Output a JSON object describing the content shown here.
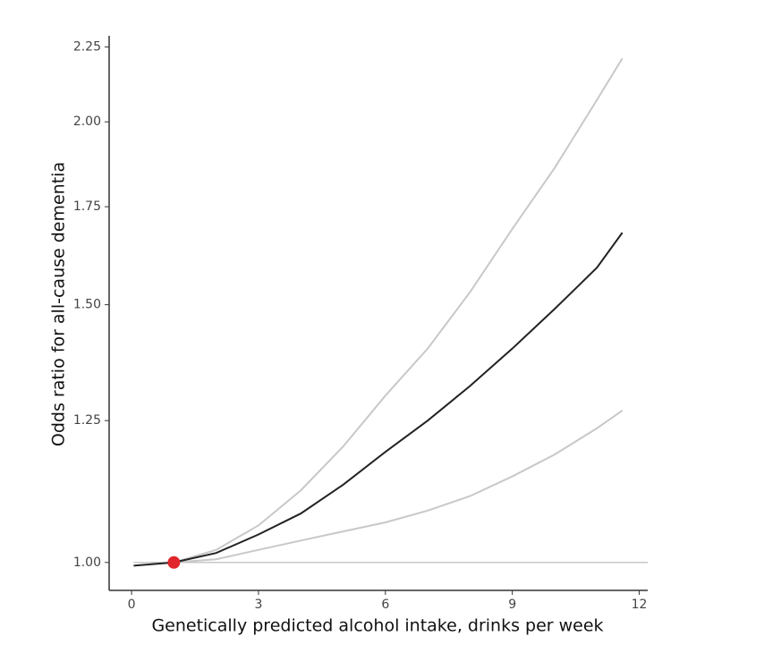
{
  "chart_data": {
    "type": "line",
    "x_label": "Genetically predicted alcohol intake, drinks per week",
    "y_label": "Odds ratio for all-cause dementia",
    "log_y": true,
    "xlim": [
      -0.53,
      12.2
    ],
    "ylim": [
      0.957,
      2.29
    ],
    "xticks": [
      0,
      3,
      6,
      9,
      12
    ],
    "yticks": [
      {
        "value": 1,
        "label": "1.00"
      },
      {
        "value": 1.25,
        "label": "1.25"
      },
      {
        "value": 1.5,
        "label": "1.50"
      },
      {
        "value": 1.75,
        "label": "1.75"
      },
      {
        "value": 2,
        "label": "2.00"
      },
      {
        "value": 2.25,
        "label": "2.25"
      }
    ],
    "reference_line": {
      "y": 1,
      "color": "#c8c8c8"
    },
    "series": [
      {
        "color": "#c8c8c8",
        "x": [
          1,
          2,
          3,
          4,
          5,
          6,
          7,
          8,
          9,
          10,
          11,
          11.6
        ],
        "values": [
          1.0,
          1.02,
          1.06,
          1.12,
          1.2,
          1.3,
          1.4,
          1.53,
          1.69,
          1.86,
          2.07,
          2.21
        ]
      },
      {
        "color": "#c8c8c8",
        "x": [
          1,
          2,
          3,
          4,
          5,
          6,
          7,
          8,
          9,
          10,
          11,
          11.6
        ],
        "values": [
          1.0,
          1.005,
          1.02,
          1.035,
          1.05,
          1.065,
          1.085,
          1.11,
          1.145,
          1.185,
          1.235,
          1.27
        ]
      },
      {
        "color": "#222222",
        "x": [
          0.05,
          1,
          2,
          3,
          4,
          5,
          6,
          7,
          8,
          9,
          10,
          11,
          11.6
        ],
        "values": [
          0.995,
          1.0,
          1.015,
          1.045,
          1.08,
          1.13,
          1.19,
          1.25,
          1.32,
          1.4,
          1.49,
          1.59,
          1.68
        ]
      }
    ],
    "points": [
      {
        "x": 1,
        "y": 1,
        "color": "#e0262b"
      }
    ]
  }
}
